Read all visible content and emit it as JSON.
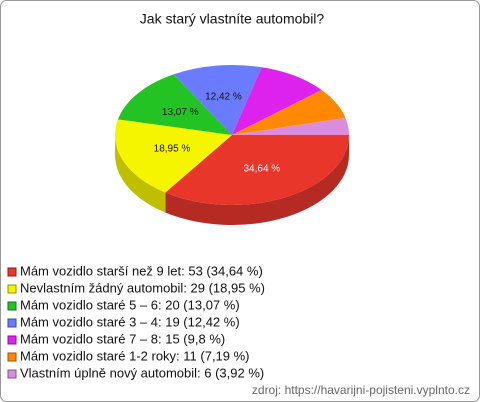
{
  "chart_data": {
    "type": "pie",
    "title": "Jak starý vlastníte automobil?",
    "categories": [
      "Mám vozidlo starší než 9 let: 53 (34,64 %)",
      "Nevlastním žádný automobil: 29 (18,95 %)",
      "Mám vozidlo staré 5 – 6: 20 (13,07 %)",
      "Mám vozidlo staré 3 – 4: 19 (12,42 %)",
      "Mám vozidlo staré 7 – 8: 15 (9,8 %)",
      "Mám vozidlo staré 1-2 roky: 11 (7,19 %)",
      "Vlastním úplně nový automobil: 6 (3,92 %)"
    ],
    "values": [
      34.64,
      18.95,
      13.07,
      12.42,
      9.8,
      7.19,
      3.92
    ],
    "value_labels": [
      "34,64 %",
      "18,95 %",
      "13,07 %",
      "12,42 %",
      null,
      null,
      null
    ],
    "colors": [
      "#e8362b",
      "#f5f500",
      "#22c322",
      "#6b7bff",
      "#dd22ee",
      "#ff8800",
      "#d98ddc"
    ],
    "source": "zdroj: https://havarijni-pojisteni.vyplnto.cz"
  }
}
